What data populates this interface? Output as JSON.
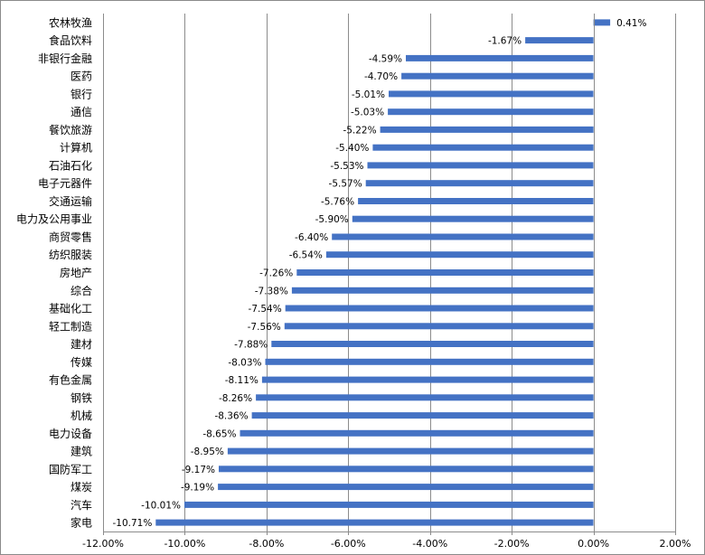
{
  "chart_data": {
    "type": "bar",
    "orientation": "horizontal",
    "categories": [
      "农林牧渔",
      "食品饮料",
      "非银行金融",
      "医药",
      "银行",
      "通信",
      "餐饮旅游",
      "计算机",
      "石油石化",
      "电子元器件",
      "交通运输",
      "电力及公用事业",
      "商贸零售",
      "纺织服装",
      "房地产",
      "综合",
      "基础化工",
      "轻工制造",
      "建材",
      "传媒",
      "有色金属",
      "钢铁",
      "机械",
      "电力设备",
      "建筑",
      "国防军工",
      "煤炭",
      "汽车",
      "家电"
    ],
    "values": [
      0.41,
      -1.67,
      -4.59,
      -4.7,
      -5.01,
      -5.03,
      -5.22,
      -5.4,
      -5.53,
      -5.57,
      -5.76,
      -5.9,
      -6.4,
      -6.54,
      -7.26,
      -7.38,
      -7.54,
      -7.56,
      -7.88,
      -8.03,
      -8.11,
      -8.26,
      -8.36,
      -8.65,
      -8.95,
      -9.17,
      -9.19,
      -10.01,
      -10.71
    ],
    "value_labels": [
      "0.41%",
      "-1.67%",
      "-4.59%",
      "-4.70%",
      "-5.01%",
      "-5.03%",
      "-5.22%",
      "-5.40%",
      "-5.53%",
      "-5.57%",
      "-5.76%",
      "-5.90%",
      "-6.40%",
      "-6.54%",
      "-7.26%",
      "-7.38%",
      "-7.54%",
      "-7.56%",
      "-7.88%",
      "-8.03%",
      "-8.11%",
      "-8.26%",
      "-8.36%",
      "-8.65%",
      "-8.95%",
      "-9.17%",
      "-9.19%",
      "-10.01%",
      "-10.71%"
    ],
    "x_ticks": [
      -12,
      -10,
      -8,
      -6,
      -4,
      -2,
      0,
      2
    ],
    "x_tick_labels": [
      "-12.00%",
      "-10.00%",
      "-8.00%",
      "-6.00%",
      "-4.00%",
      "-2.00%",
      "0.00%",
      "2.00%"
    ],
    "xlim": [
      -12,
      2
    ],
    "title": "",
    "xlabel": "",
    "ylabel": "",
    "grid": "vertical",
    "legend": "none",
    "bar_color": "#4472C4"
  }
}
